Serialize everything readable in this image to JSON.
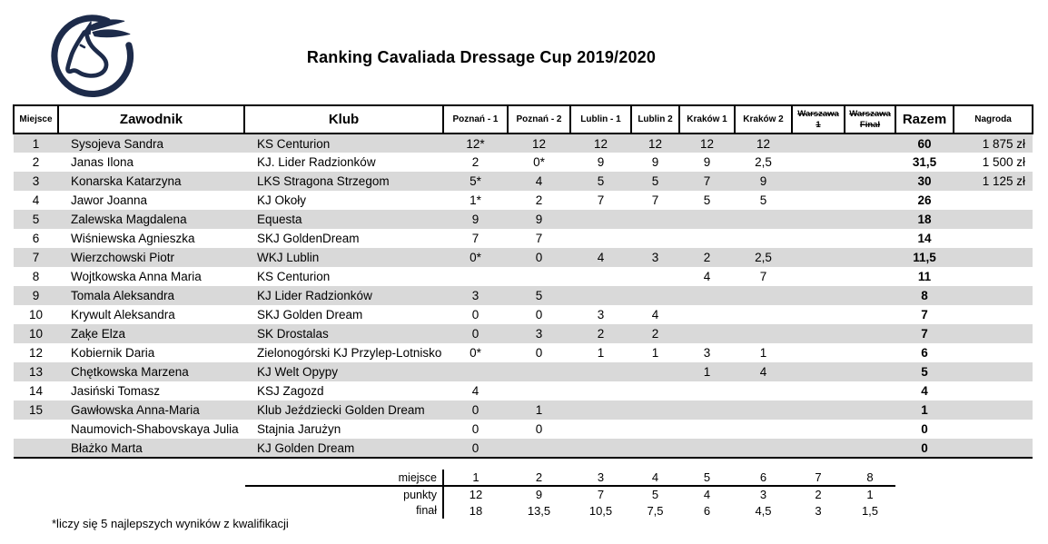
{
  "page": {
    "title": "Ranking Cavaliada Dressage Cup 2019/2020",
    "footnote": "*liczy się 5 najlepszych wyników z kwalifikacji",
    "logo": "horse-head-logo",
    "colors": {
      "accent": "#1d2b4a",
      "stripe": "#d9d9d9",
      "border": "#000000"
    }
  },
  "ranking_table": {
    "columns": [
      {
        "key": "place",
        "label": "Miejsce",
        "struck": false
      },
      {
        "key": "name",
        "label": "Zawodnik",
        "struck": false
      },
      {
        "key": "club",
        "label": "Klub",
        "struck": false
      },
      {
        "key": "poznan1",
        "label": "Poznań - 1",
        "struck": false
      },
      {
        "key": "poznan2",
        "label": "Poznań - 2",
        "struck": false
      },
      {
        "key": "lublin1",
        "label": "Lublin - 1",
        "struck": false
      },
      {
        "key": "lublin2",
        "label": "Lublin 2",
        "struck": false
      },
      {
        "key": "krakow1",
        "label": "Kraków 1",
        "struck": false
      },
      {
        "key": "krakow2",
        "label": "Kraków 2",
        "struck": false
      },
      {
        "key": "warszawa1",
        "label": "Warszawa 1",
        "struck": true
      },
      {
        "key": "warszawaFinal",
        "label": "Warszawa Finał",
        "struck": true
      },
      {
        "key": "razem",
        "label": "Razem",
        "struck": false
      },
      {
        "key": "nagroda",
        "label": "Nagroda",
        "struck": false
      }
    ],
    "rows": [
      [
        "1",
        "Sysojeva Sandra",
        "KS Centurion",
        "12*",
        "12",
        "12",
        "12",
        "12",
        "12",
        "",
        "",
        "60",
        "1 875 zł"
      ],
      [
        "2",
        "Janas Ilona",
        "KJ. Lider Radzionków",
        "2",
        "0*",
        "9",
        "9",
        "9",
        "2,5",
        "",
        "",
        "31,5",
        "1 500 zł"
      ],
      [
        "3",
        "Konarska Katarzyna",
        "LKS Stragona Strzegom",
        "5*",
        "4",
        "5",
        "5",
        "7",
        "9",
        "",
        "",
        "30",
        "1 125 zł"
      ],
      [
        "4",
        "Jawor Joanna",
        "KJ Okoły",
        "1*",
        "2",
        "7",
        "7",
        "5",
        "5",
        "",
        "",
        "26",
        ""
      ],
      [
        "5",
        "Zalewska Magdalena",
        "Equesta",
        "9",
        "9",
        "",
        "",
        "",
        "",
        "",
        "",
        "18",
        ""
      ],
      [
        "6",
        "Wiśniewska Agnieszka",
        "SKJ GoldenDream",
        "7",
        "7",
        "",
        "",
        "",
        "",
        "",
        "",
        "14",
        ""
      ],
      [
        "7",
        "Wierzchowski Piotr",
        "WKJ Lublin",
        "0*",
        "0",
        "4",
        "3",
        "2",
        "2,5",
        "",
        "",
        "11,5",
        ""
      ],
      [
        "8",
        "Wojtkowska Anna Maria",
        "KS Centurion",
        "",
        "",
        "",
        "",
        "4",
        "7",
        "",
        "",
        "11",
        ""
      ],
      [
        "9",
        "Tomala Aleksandra",
        "KJ Lider Radzionków",
        "3",
        "5",
        "",
        "",
        "",
        "",
        "",
        "",
        "8",
        ""
      ],
      [
        "10",
        "Krywult Aleksandra",
        "SKJ Golden Dream",
        "0",
        "0",
        "3",
        "4",
        "",
        "",
        "",
        "",
        "7",
        ""
      ],
      [
        "10",
        "Zaķe Elza",
        "SK Drostalas",
        "0",
        "3",
        "2",
        "2",
        "",
        "",
        "",
        "",
        "7",
        ""
      ],
      [
        "12",
        "Kobiernik Daria",
        "Zielonogórski KJ Przylep-Lotnisko",
        "0*",
        "0",
        "1",
        "1",
        "3",
        "1",
        "",
        "",
        "6",
        ""
      ],
      [
        "13",
        "Chętkowska Marzena",
        "KJ Welt Opypy",
        "",
        "",
        "",
        "",
        "1",
        "4",
        "",
        "",
        "5",
        ""
      ],
      [
        "14",
        "Jasiński Tomasz",
        "KSJ Zagozd",
        "4",
        "",
        "",
        "",
        "",
        "",
        "",
        "",
        "4",
        ""
      ],
      [
        "15",
        "Gawłowska Anna-Maria",
        "Klub Jeździecki Golden Dream",
        "0",
        "1",
        "",
        "",
        "",
        "",
        "",
        "",
        "1",
        ""
      ],
      [
        "",
        "Naumovich-Shabovskaya Julia",
        "Stajnia Jarużyn",
        "0",
        "0",
        "",
        "",
        "",
        "",
        "",
        "",
        "0",
        ""
      ],
      [
        "",
        "Błażko Marta",
        "KJ Golden Dream",
        "0",
        "",
        "",
        "",
        "",
        "",
        "",
        "",
        "0",
        ""
      ]
    ]
  },
  "points_table": {
    "rows": [
      {
        "label": "miejsce",
        "values": [
          "1",
          "2",
          "3",
          "4",
          "5",
          "6",
          "7",
          "8"
        ]
      },
      {
        "label": "punkty",
        "values": [
          "12",
          "9",
          "7",
          "5",
          "4",
          "3",
          "2",
          "1"
        ]
      },
      {
        "label": "finał",
        "values": [
          "18",
          "13,5",
          "10,5",
          "7,5",
          "6",
          "4,5",
          "3",
          "1,5"
        ]
      }
    ]
  }
}
